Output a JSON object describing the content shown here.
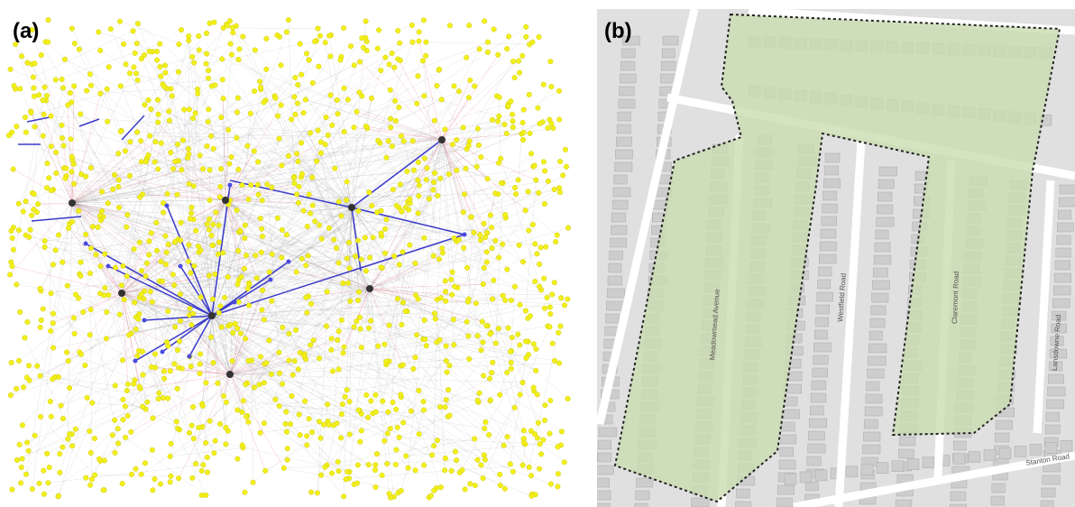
{
  "panels": [
    {
      "label": "(a)"
    },
    {
      "label": "(b)",
      "roads": [
        "Meadowmead Avenue",
        "Westfield Road",
        "Claremont Road",
        "Lansdowne Road",
        "Stanton Road"
      ]
    }
  ]
}
